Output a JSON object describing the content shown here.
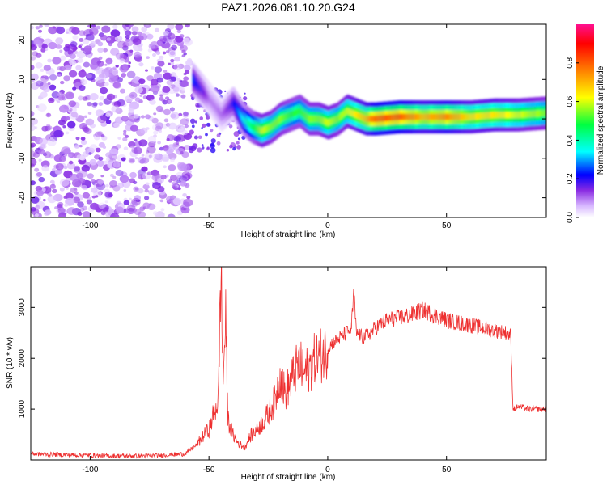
{
  "chart_data": [
    {
      "type": "heatmap",
      "title": "PAZ1.2026.081.10.20.G24",
      "xlabel": "Height of straight line (km)",
      "ylabel": "Frequency (Hz)",
      "xlim": [
        -125,
        92
      ],
      "ylim": [
        -25,
        24
      ],
      "xticks": [
        -100,
        -50,
        0,
        50
      ],
      "yticks": [
        -20,
        -10,
        0,
        10,
        20
      ],
      "xtick_labels": [
        "-100",
        "-50",
        "0",
        "50"
      ],
      "ytick_labels": [
        "-20",
        "-10",
        "0",
        "10",
        "20"
      ],
      "colorbar": {
        "label": "Normalized spectral amplitude",
        "range": [
          0,
          1
        ],
        "ticks": [
          0.0,
          0.2,
          0.4,
          0.6,
          0.8
        ],
        "tick_labels": [
          "0.0",
          "0.2",
          "0.4",
          "0.6",
          "0.8"
        ]
      },
      "ridge": {
        "description_x_km": [
          -57,
          -50,
          -45,
          -40,
          -36,
          -32,
          -28,
          -24,
          -20,
          -16,
          -12,
          -8,
          -4,
          0,
          4,
          8,
          12,
          16,
          20,
          30,
          40,
          50,
          60,
          70,
          80,
          92
        ],
        "frequency_hz": [
          10,
          5,
          1,
          4,
          0,
          -2,
          -3,
          -2,
          0,
          1,
          2,
          0,
          0,
          -1,
          0,
          2,
          1,
          0,
          0,
          0.5,
          0.5,
          0.5,
          0.5,
          1,
          1,
          1.5
        ],
        "amplitude": [
          0.25,
          0.1,
          0.1,
          0.2,
          0.35,
          0.45,
          0.6,
          0.55,
          0.55,
          0.5,
          0.5,
          0.55,
          0.55,
          0.6,
          0.55,
          0.6,
          0.65,
          0.7,
          0.8,
          0.8,
          0.7,
          0.75,
          0.65,
          0.65,
          0.6,
          0.55
        ]
      },
      "noise_region_x_km": [
        -125,
        -58
      ],
      "noise_amplitude": 0.1
    },
    {
      "type": "line",
      "title": "",
      "xlabel": "Height of straight line (km)",
      "ylabel": "SNR (10 * v/v)",
      "xlim": [
        -125,
        92
      ],
      "ylim": [
        0,
        3800
      ],
      "xticks": [
        -100,
        -50,
        0,
        50
      ],
      "yticks": [
        1000,
        2000,
        3000
      ],
      "xtick_labels": [
        "-100",
        "-50",
        "0",
        "50"
      ],
      "ytick_labels": [
        "1000",
        "2000",
        "3000"
      ],
      "color": "#ee3030",
      "series": [
        {
          "name": "SNR",
          "x": [
            -125,
            -110,
            -100,
            -90,
            -80,
            -70,
            -60,
            -55,
            -52,
            -50,
            -48,
            -46,
            -45,
            -44,
            -43,
            -42,
            -40,
            -38,
            -35,
            -32,
            -30,
            -28,
            -25,
            -22,
            -20,
            -18,
            -15,
            -12,
            -10,
            -8,
            -5,
            -2,
            0,
            2,
            5,
            8,
            10,
            11,
            12,
            15,
            18,
            20,
            25,
            30,
            35,
            40,
            45,
            50,
            55,
            60,
            65,
            70,
            75,
            77,
            78,
            80,
            85,
            92
          ],
          "y": [
            120,
            100,
            90,
            80,
            80,
            90,
            120,
            300,
            500,
            600,
            900,
            1200,
            3800,
            1600,
            2800,
            800,
            500,
            350,
            250,
            500,
            600,
            700,
            900,
            1200,
            1700,
            1300,
            1600,
            1900,
            1700,
            1800,
            2000,
            2100,
            2200,
            2300,
            2400,
            2500,
            2600,
            3300,
            2500,
            2400,
            2500,
            2600,
            2750,
            2800,
            2850,
            2950,
            2850,
            2750,
            2700,
            2650,
            2600,
            2550,
            2500,
            2450,
            1000,
            1050,
            1000,
            1000
          ]
        }
      ]
    }
  ],
  "colors": {
    "frame": "#000000",
    "line": "#ee3030"
  }
}
